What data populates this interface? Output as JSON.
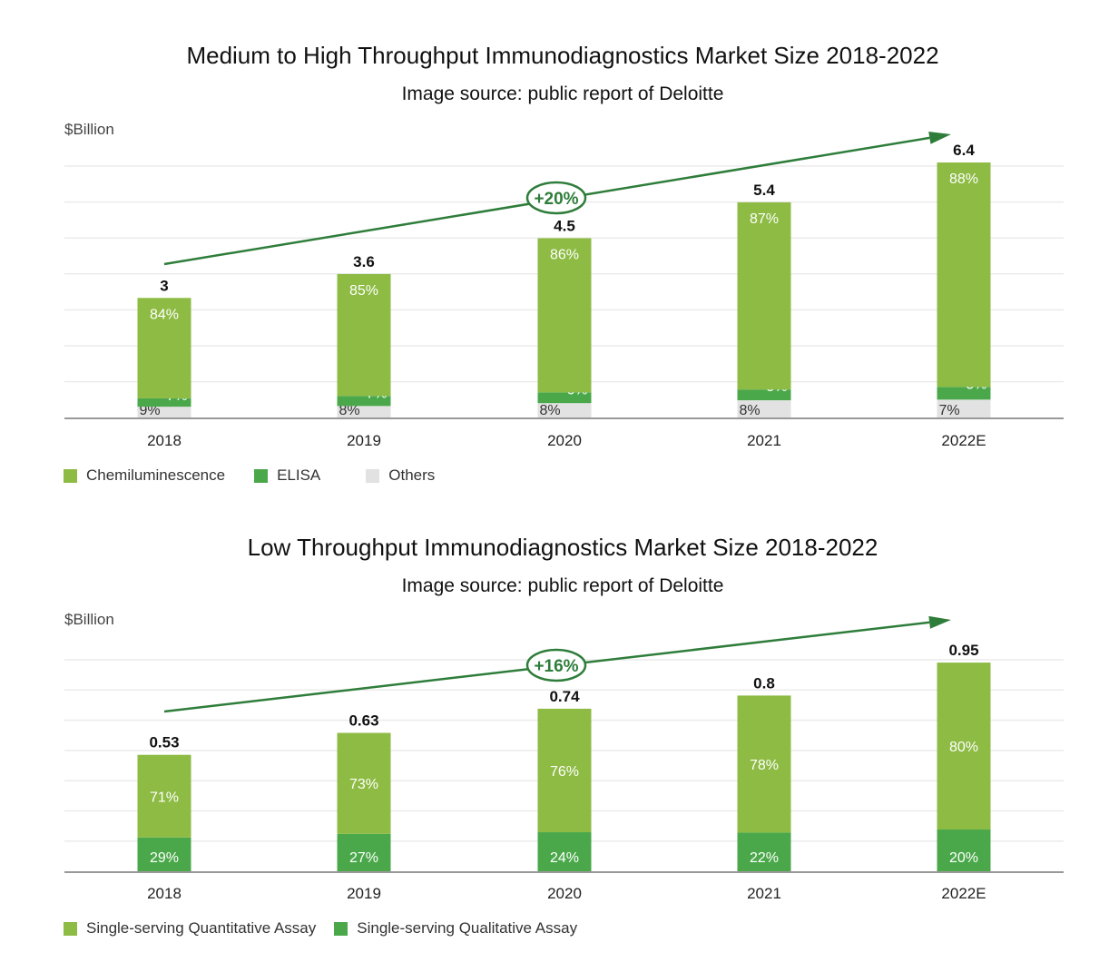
{
  "chart_data": [
    {
      "type": "bar",
      "stacked": true,
      "title": "Medium to High Throughput Immunodiagnostics Market Size 2018-2022",
      "subtitle": "Image source: public report of Deloitte",
      "ylabel": "$Billion",
      "xlabel": "",
      "categories": [
        "2018",
        "2019",
        "2020",
        "2021",
        "2022E"
      ],
      "totals": [
        3,
        3.6,
        4.5,
        5.4,
        6.4
      ],
      "total_labels": [
        "3",
        "3.6",
        "4.5",
        "5.4",
        "6.4"
      ],
      "series": [
        {
          "name": "Others",
          "color": "#e2e2e2",
          "share_pct": [
            9,
            8,
            8,
            8,
            7
          ],
          "labels": [
            "9%",
            "8%",
            "8%",
            "8%",
            "7%"
          ]
        },
        {
          "name": "ELISA",
          "color": "#4aa84a",
          "share_pct": [
            7,
            7,
            6,
            5,
            5
          ],
          "labels": [
            "7%",
            "7%",
            "6%",
            "5%",
            "5%"
          ]
        },
        {
          "name": "Chemiluminescence",
          "color": "#8dbb43",
          "share_pct": [
            84,
            85,
            86,
            87,
            88
          ],
          "labels": [
            "84%",
            "85%",
            "86%",
            "87%",
            "88%"
          ]
        }
      ],
      "legend": [
        "Chemiluminescence",
        "ELISA",
        "Others"
      ],
      "legend_position": "bottom-left",
      "ylim": [
        0,
        7
      ],
      "grid": true,
      "annotation": {
        "text": "+20%",
        "type": "CAGR growth arrow"
      }
    },
    {
      "type": "bar",
      "stacked": true,
      "title": "Low Throughput Immunodiagnostics Market Size 2018-2022",
      "subtitle": "Image source: public report of Deloitte",
      "ylabel": "$Billion",
      "xlabel": "",
      "categories": [
        "2018",
        "2019",
        "2020",
        "2021",
        "2022E"
      ],
      "totals": [
        0.53,
        0.63,
        0.74,
        0.8,
        0.95
      ],
      "total_labels": [
        "0.53",
        "0.63",
        "0.74",
        "0.8",
        "0.95"
      ],
      "series": [
        {
          "name": "Single-serving Qualitative Assay",
          "color": "#4aa84a",
          "share_pct": [
            29,
            27,
            24,
            22,
            20
          ],
          "labels": [
            "29%",
            "27%",
            "24%",
            "22%",
            "20%"
          ]
        },
        {
          "name": "Single-serving Quantitative Assay",
          "color": "#8dbb43",
          "share_pct": [
            71,
            73,
            76,
            78,
            80
          ],
          "labels": [
            "71%",
            "73%",
            "76%",
            "78%",
            "80%"
          ]
        }
      ],
      "legend": [
        "Single-serving Quantitative Assay",
        "Single-serving Qualitative Assay"
      ],
      "legend_position": "bottom-left",
      "ylim": [
        0,
        1.0
      ],
      "grid": true,
      "annotation": {
        "text": "+16%",
        "type": "CAGR growth arrow"
      }
    }
  ],
  "colors": {
    "chemi": "#8dbb43",
    "elisa": "#4aa84a",
    "others": "#e2e2e2",
    "arrow": "#2e7d3a",
    "grid": "#ebebeb",
    "axis": "#999999"
  }
}
